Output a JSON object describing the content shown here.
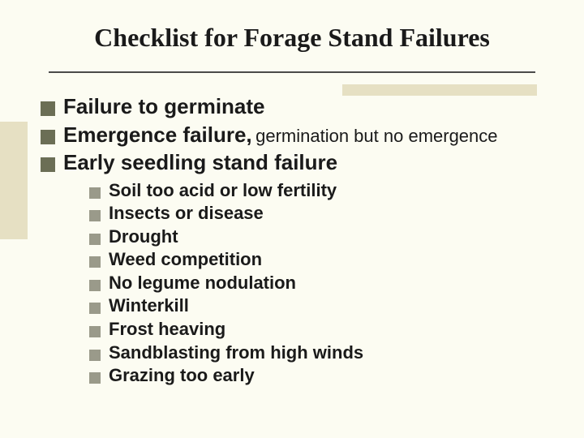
{
  "title": "Checklist for Forage Stand Failures",
  "colors": {
    "background": "#fcfcf2",
    "bullet_l1": "#6b6e55",
    "bullet_l2": "#9a9a8a",
    "accent": "#e6e0c3",
    "rule": "#4a4a4a",
    "text": "#1a1a1a"
  },
  "typography": {
    "title_family": "Times New Roman",
    "title_size_pt": 32,
    "body_family": "Arial",
    "l1_size_pt": 26,
    "l1_note_size_pt": 22,
    "l2_size_pt": 22
  },
  "items": [
    {
      "text": "Failure to germinate"
    },
    {
      "text": "Emergence failure,",
      "note": "germination but no emergence"
    },
    {
      "text": "Early seedling stand failure",
      "sub": [
        "Soil too acid or low fertility",
        "Insects or disease",
        "Drought",
        "Weed competition",
        "No legume nodulation",
        "Winterkill",
        "Frost heaving",
        "Sandblasting from high winds",
        "Grazing too early"
      ]
    }
  ]
}
